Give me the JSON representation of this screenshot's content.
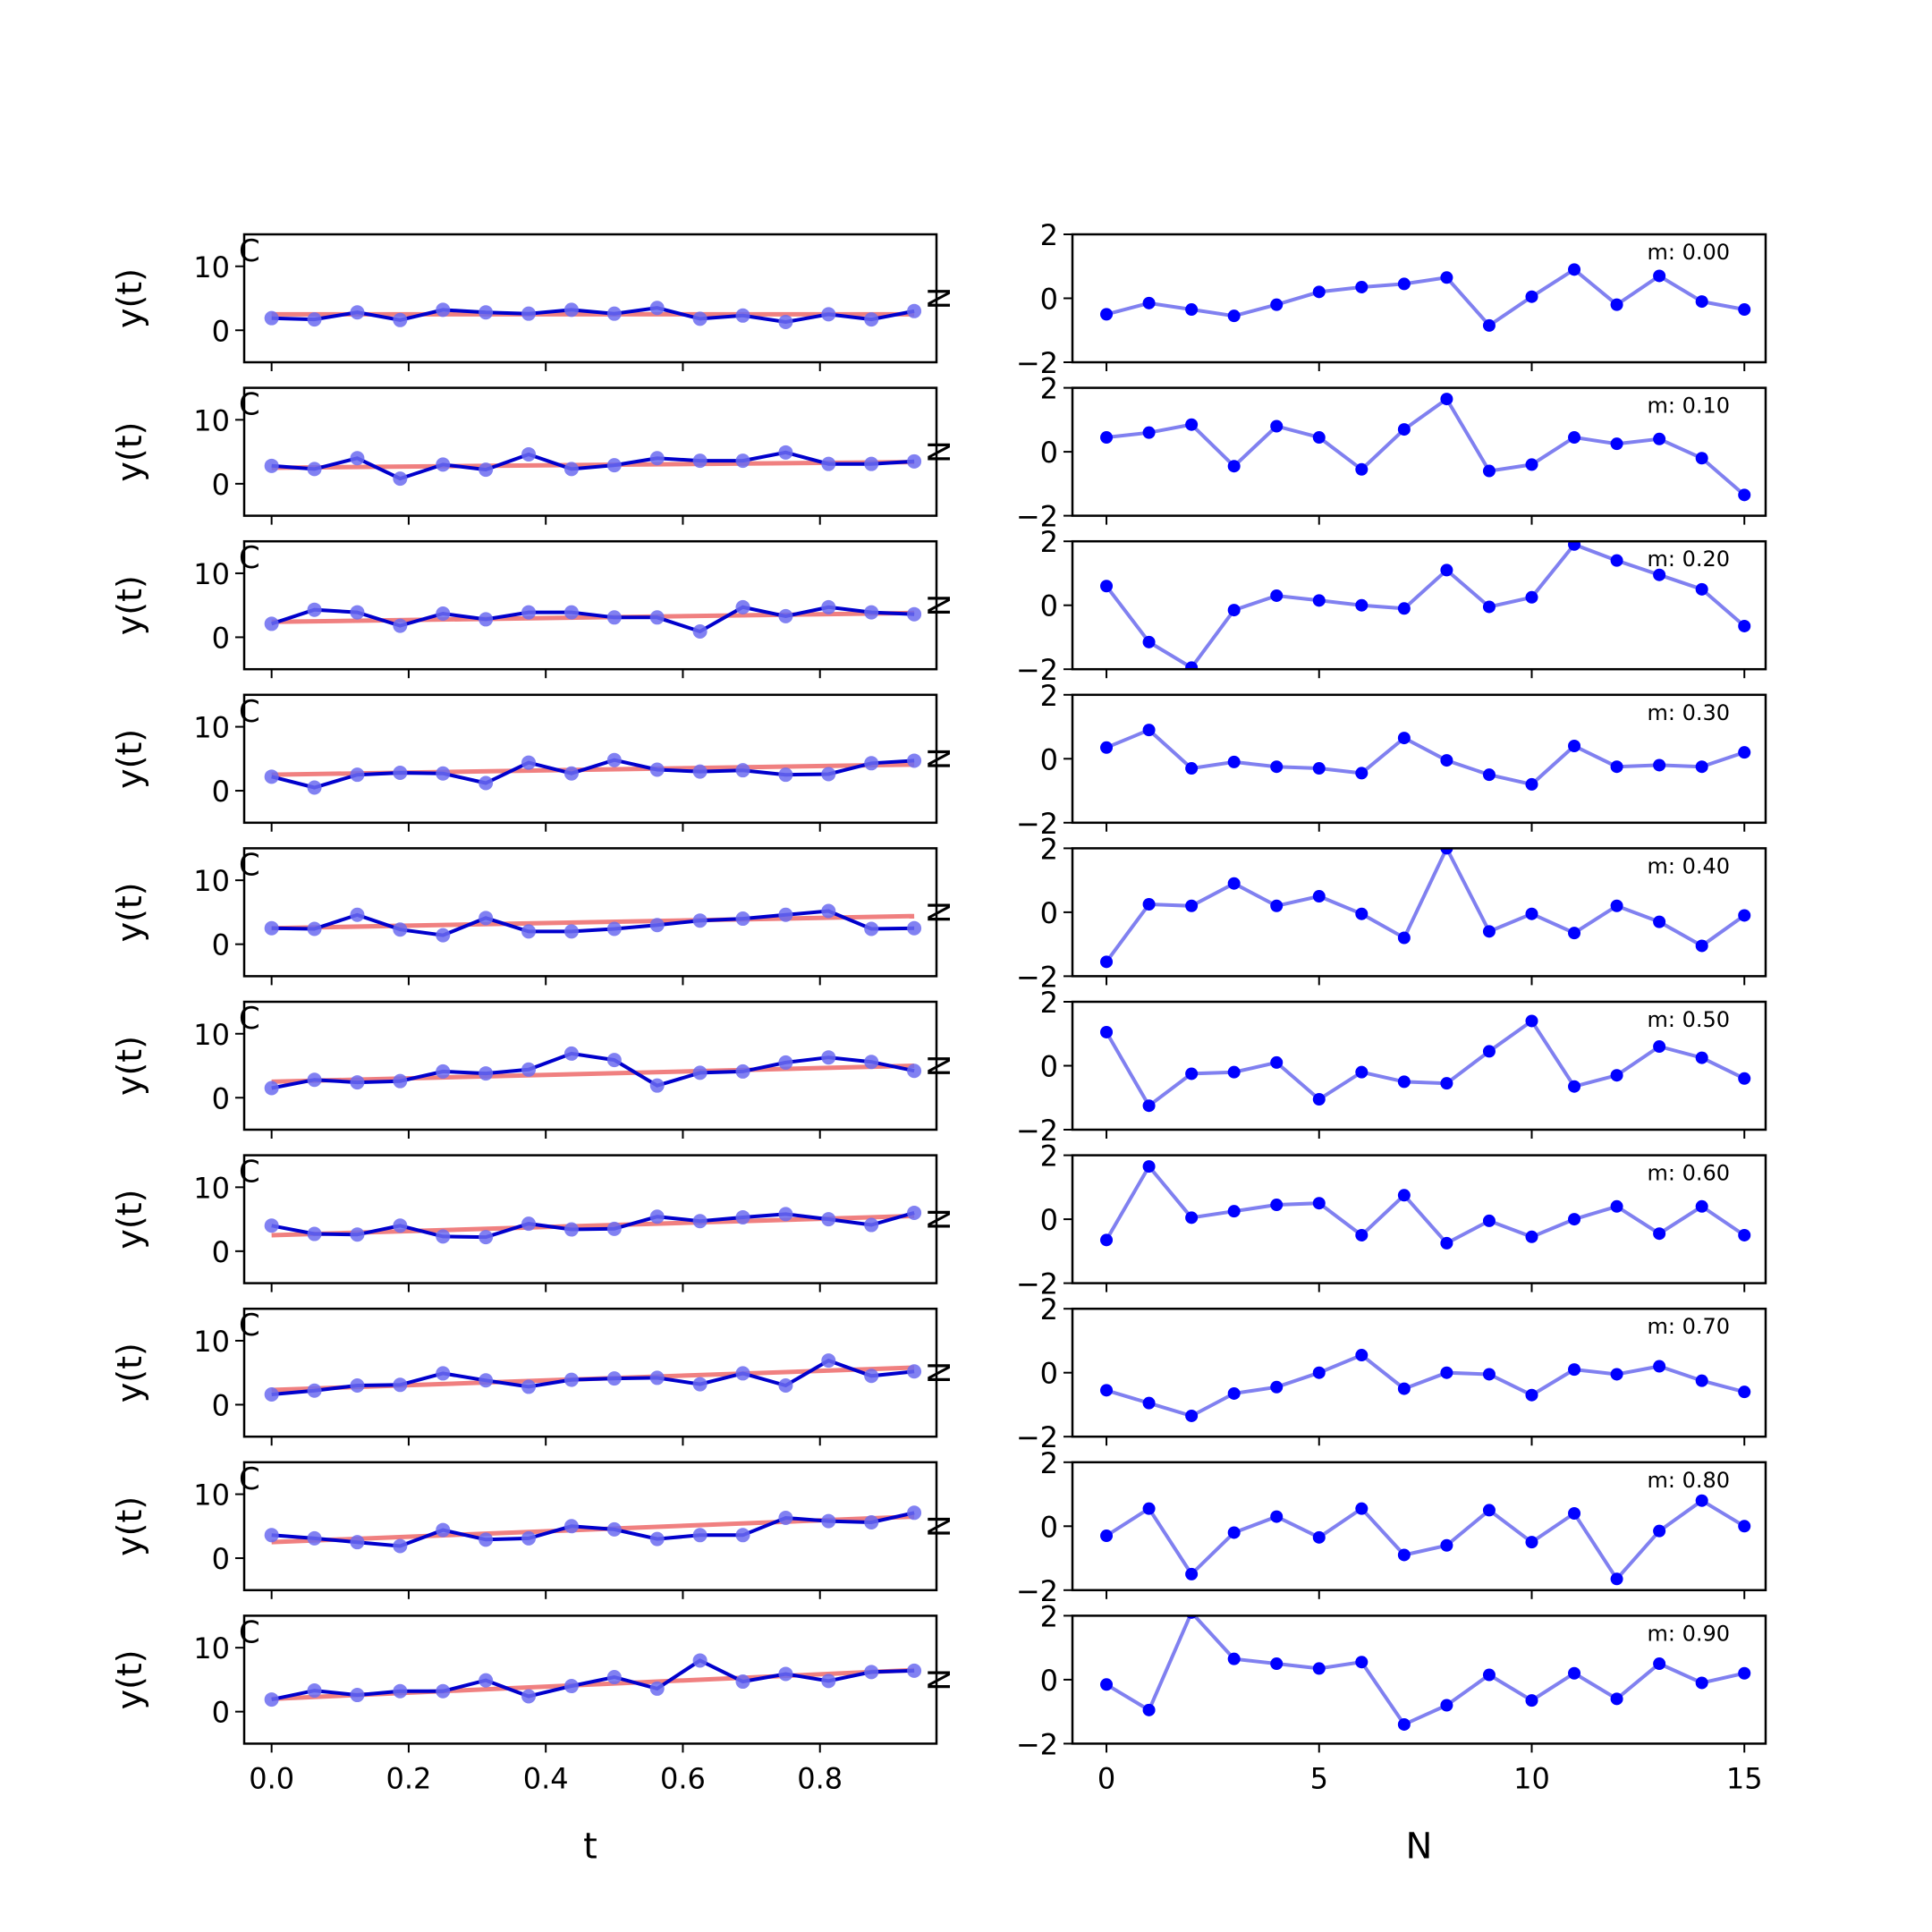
{
  "figure": {
    "left_column": {
      "ylabel": "y(t)",
      "xlabel": "t"
    },
    "right_column": {
      "ylabel_fragment": "N",
      "xlabel": "N"
    }
  },
  "colors": {
    "fit_line": "#f08080",
    "data_line": "#0000cc",
    "data_marker": "#6b6bf0",
    "residual_line": "#8080f0",
    "residual_marker": "#0000ff",
    "axes": "#000000",
    "clipped_label_fragment": "#000000"
  },
  "chart_data": [
    {
      "type": "line",
      "panel": "left",
      "t": [
        0.0,
        0.0625,
        0.125,
        0.1875,
        0.25,
        0.3125,
        0.375,
        0.4375,
        0.5,
        0.5625,
        0.625,
        0.6875,
        0.75,
        0.8125,
        0.875,
        0.9375
      ],
      "xlim": [
        -0.04,
        0.97
      ],
      "ylim": [
        -5,
        15
      ],
      "yticks": [
        0,
        10
      ],
      "xticks": [
        0.0,
        0.2,
        0.4,
        0.6,
        0.8
      ],
      "xtick_labels": [
        "0.0",
        "0.2",
        "0.4",
        "0.6",
        "0.8"
      ],
      "ylabel": "y(t)",
      "xlabel": "t",
      "rows": [
        {
          "fit": [
            2.5,
            2.5
          ],
          "y": [
            1.9,
            1.7,
            2.8,
            1.6,
            3.2,
            2.8,
            2.6,
            3.2,
            2.6,
            3.5,
            1.8,
            2.3,
            1.3,
            2.5,
            1.7,
            3.0
          ]
        },
        {
          "fit": [
            2.5,
            3.4
          ],
          "y": [
            2.8,
            2.3,
            4.0,
            0.8,
            3.0,
            2.2,
            4.6,
            2.3,
            2.9,
            4.0,
            3.6,
            3.6,
            4.9,
            3.1,
            3.1,
            3.5
          ]
        },
        {
          "fit": [
            2.4,
            3.8
          ],
          "y": [
            2.1,
            4.3,
            3.9,
            1.8,
            3.7,
            2.8,
            3.9,
            3.9,
            3.1,
            3.1,
            0.9,
            4.7,
            3.3,
            4.7,
            3.9,
            3.6
          ]
        },
        {
          "fit": [
            2.5,
            4.1
          ],
          "y": [
            2.2,
            0.5,
            2.5,
            2.8,
            2.7,
            1.2,
            4.4,
            2.7,
            4.8,
            3.3,
            3.0,
            3.2,
            2.5,
            2.6,
            4.3,
            4.7
          ]
        },
        {
          "fit": [
            2.5,
            4.4
          ],
          "y": [
            2.5,
            2.4,
            4.6,
            2.3,
            1.4,
            4.1,
            2.0,
            2.0,
            2.4,
            3.0,
            3.7,
            4.0,
            4.6,
            5.2,
            2.4,
            2.5
          ]
        },
        {
          "fit": [
            2.5,
            5.0
          ],
          "y": [
            1.5,
            2.8,
            2.4,
            2.6,
            4.1,
            3.8,
            4.4,
            6.9,
            5.9,
            1.9,
            3.9,
            4.1,
            5.5,
            6.3,
            5.6,
            4.2
          ]
        },
        {
          "fit": [
            2.5,
            5.5
          ],
          "y": [
            4.0,
            2.7,
            2.6,
            4.0,
            2.3,
            2.2,
            4.3,
            3.4,
            3.5,
            5.4,
            4.7,
            5.3,
            5.8,
            5.0,
            4.1,
            6.0
          ]
        },
        {
          "fit": [
            2.3,
            5.8
          ],
          "y": [
            1.6,
            2.2,
            3.0,
            3.1,
            4.9,
            3.8,
            2.8,
            3.9,
            4.1,
            4.2,
            3.2,
            4.9,
            3.0,
            6.9,
            4.5,
            5.2
          ]
        },
        {
          "fit": [
            2.5,
            6.5
          ],
          "y": [
            3.6,
            3.1,
            2.5,
            1.9,
            4.4,
            2.9,
            3.1,
            5.0,
            4.5,
            3.0,
            3.6,
            3.6,
            6.3,
            5.8,
            5.6,
            7.1
          ]
        },
        {
          "fit": [
            2.0,
            6.5
          ],
          "y": [
            1.9,
            3.3,
            2.6,
            3.2,
            3.2,
            4.9,
            2.4,
            4.0,
            5.4,
            3.6,
            8.0,
            4.7,
            5.9,
            4.8,
            6.2,
            6.4
          ]
        }
      ]
    },
    {
      "type": "line",
      "panel": "right",
      "x": [
        0,
        1,
        2,
        3,
        4,
        5,
        6,
        7,
        8,
        9,
        10,
        11,
        12,
        13,
        14,
        15
      ],
      "xlim": [
        -0.8,
        15.5
      ],
      "ylim": [
        -2,
        2
      ],
      "yticks": [
        -2,
        0,
        2
      ],
      "xticks": [
        0,
        5,
        10,
        15
      ],
      "xtick_labels": [
        "0",
        "5",
        "10",
        "15"
      ],
      "xlabel": "N",
      "rows": [
        {
          "label": "m: 0.00",
          "residual": [
            -0.5,
            -0.15,
            -0.35,
            -0.55,
            -0.2,
            0.2,
            0.35,
            0.45,
            0.65,
            -0.85,
            0.05,
            0.9,
            -0.2,
            0.7,
            -0.1,
            -0.35
          ]
        },
        {
          "label": "m: 0.10",
          "residual": [
            0.45,
            0.6,
            0.85,
            -0.45,
            0.8,
            0.45,
            -0.55,
            0.7,
            1.65,
            -0.6,
            -0.4,
            0.45,
            0.25,
            0.4,
            -0.2,
            -1.35
          ]
        },
        {
          "label": "m: 0.20",
          "residual": [
            0.6,
            -1.15,
            -1.95,
            -0.15,
            0.3,
            0.15,
            0.0,
            -0.1,
            1.1,
            -0.05,
            0.25,
            1.9,
            1.4,
            0.95,
            0.5,
            -0.65
          ]
        },
        {
          "label": "m: 0.30",
          "residual": [
            0.35,
            0.9,
            -0.3,
            -0.1,
            -0.25,
            -0.3,
            -0.45,
            0.65,
            -0.05,
            -0.5,
            -0.8,
            0.4,
            -0.25,
            -0.2,
            -0.25,
            0.2
          ]
        },
        {
          "label": "m: 0.40",
          "residual": [
            -1.55,
            0.25,
            0.2,
            0.9,
            0.2,
            0.5,
            -0.05,
            -0.8,
            2.0,
            -0.6,
            -0.05,
            -0.65,
            0.2,
            -0.3,
            -1.05,
            -0.1
          ]
        },
        {
          "label": "m: 0.50",
          "residual": [
            1.05,
            -1.25,
            -0.25,
            -0.2,
            0.1,
            -1.05,
            -0.2,
            -0.5,
            -0.55,
            0.45,
            1.4,
            -0.65,
            -0.3,
            0.6,
            0.25,
            -0.4
          ]
        },
        {
          "label": "m: 0.60",
          "residual": [
            -0.65,
            1.65,
            0.05,
            0.25,
            0.45,
            0.5,
            -0.5,
            0.75,
            -0.75,
            -0.05,
            -0.55,
            0.0,
            0.4,
            -0.45,
            0.4,
            -0.5
          ]
        },
        {
          "label": "m: 0.70",
          "residual": [
            -0.55,
            -0.95,
            -1.35,
            -0.65,
            -0.45,
            0.0,
            0.55,
            -0.5,
            0.0,
            -0.05,
            -0.7,
            0.1,
            -0.05,
            0.2,
            -0.25,
            -0.6
          ]
        },
        {
          "label": "m: 0.80",
          "residual": [
            -0.3,
            0.55,
            -1.5,
            -0.2,
            0.3,
            -0.35,
            0.55,
            -0.9,
            -0.6,
            0.5,
            -0.5,
            0.4,
            -1.65,
            -0.15,
            0.8,
            0.0
          ]
        },
        {
          "label": "m: 0.90",
          "residual": [
            -0.15,
            -0.95,
            2.1,
            0.65,
            0.5,
            0.35,
            0.55,
            -1.4,
            -0.8,
            0.15,
            -0.65,
            0.2,
            -0.6,
            0.5,
            -0.1,
            0.2
          ]
        }
      ]
    }
  ]
}
